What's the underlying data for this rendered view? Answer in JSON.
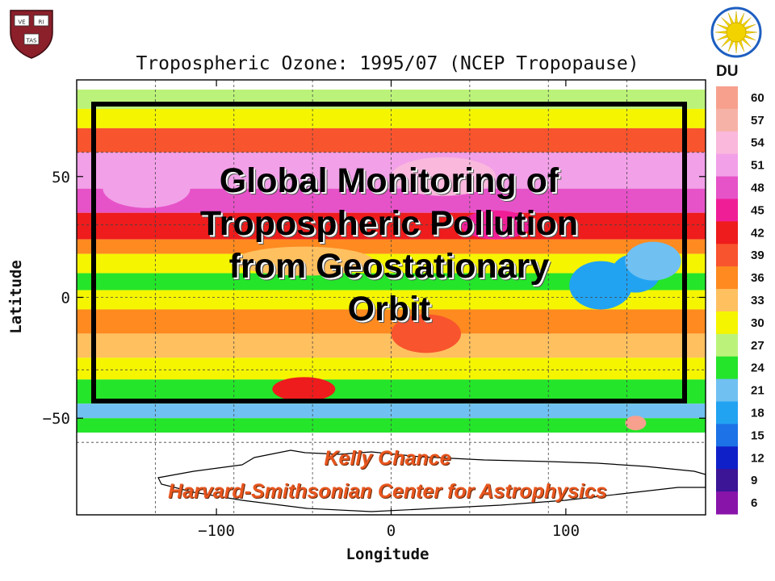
{
  "slide": {
    "title": "Global Monitoring of\nTropospheric Pollution\nfrom Geostationary\nOrbit",
    "author": "Kelly Chance",
    "affiliation": "Harvard-Smithsonian Center for Astrophysics"
  },
  "logos": {
    "left": {
      "name": "harvard-shield",
      "text": [
        "VE",
        "RI",
        "TAS"
      ],
      "color": "#8b1f2a"
    },
    "right": {
      "name": "smithsonian-sun",
      "color": "#f2d300",
      "ring_color": "#1e5fc0"
    }
  },
  "chart_data": {
    "type": "heatmap",
    "title": "Tropospheric Ozone: 1995/07 (NCEP Tropopause)",
    "xlabel": "Longitude",
    "ylabel": "Latitude",
    "x_ticks": [
      -100,
      0,
      100
    ],
    "x_tick_labels": [
      "−100",
      "0",
      "100"
    ],
    "y_ticks": [
      50,
      0,
      -50
    ],
    "y_tick_labels": [
      "50",
      "0",
      "−50"
    ],
    "xlim": [
      -180,
      180
    ],
    "ylim": [
      -90,
      90
    ],
    "data_lat_range": [
      -56,
      86
    ],
    "grid": "dashed, 45° longitude and 30° latitude",
    "colorbar": {
      "unit": "DU",
      "levels": [
        60,
        57,
        54,
        51,
        48,
        45,
        42,
        39,
        36,
        33,
        30,
        27,
        24,
        21,
        18,
        15,
        12,
        9,
        6
      ],
      "colors": [
        "#f7a08e",
        "#f7b2a8",
        "#f9b8dc",
        "#f2a0e8",
        "#e653c8",
        "#f01e96",
        "#ee1c1c",
        "#f8542e",
        "#fe8a20",
        "#ffc060",
        "#f5f500",
        "#bbf37a",
        "#24e52a",
        "#70c0f2",
        "#22a3f2",
        "#1c72e6",
        "#1020c8",
        "#3c1496",
        "#8814aa"
      ]
    },
    "zonal_bands": [
      {
        "lat_range": [
          78,
          86
        ],
        "value": 26
      },
      {
        "lat_range": [
          70,
          78
        ],
        "value": 31
      },
      {
        "lat_range": [
          60,
          70
        ],
        "value": 39
      },
      {
        "lat_range": [
          45,
          60
        ],
        "value": 50
      },
      {
        "lat_range": [
          35,
          45
        ],
        "value": 47
      },
      {
        "lat_range": [
          24,
          35
        ],
        "value": 42
      },
      {
        "lat_range": [
          18,
          24
        ],
        "value": 36
      },
      {
        "lat_range": [
          10,
          18
        ],
        "value": 29
      },
      {
        "lat_range": [
          3,
          10
        ],
        "value": 23
      },
      {
        "lat_range": [
          -5,
          3
        ],
        "value": 30
      },
      {
        "lat_range": [
          -15,
          -5
        ],
        "value": 35
      },
      {
        "lat_range": [
          -25,
          -15
        ],
        "value": 33
      },
      {
        "lat_range": [
          -34,
          -25
        ],
        "value": 30
      },
      {
        "lat_range": [
          -44,
          -34
        ],
        "value": 25
      },
      {
        "lat_range": [
          -50,
          -44
        ],
        "value": 20
      },
      {
        "lat_range": [
          -56,
          -50
        ],
        "value": 24
      }
    ],
    "anomalies": [
      {
        "lon": 120,
        "lat": 5,
        "rx": 18,
        "ry": 10,
        "value": 19
      },
      {
        "lon": 140,
        "lat": 10,
        "rx": 14,
        "ry": 8,
        "value": 17
      },
      {
        "lon": 150,
        "lat": 15,
        "rx": 16,
        "ry": 8,
        "value": 21
      },
      {
        "lon": -140,
        "lat": 45,
        "rx": 25,
        "ry": 8,
        "value": 51
      },
      {
        "lon": 30,
        "lat": 50,
        "rx": 30,
        "ry": 8,
        "value": 54
      },
      {
        "lon": -50,
        "lat": 15,
        "rx": 40,
        "ry": 6,
        "value": 33
      },
      {
        "lon": 20,
        "lat": -15,
        "rx": 20,
        "ry": 8,
        "value": 39
      },
      {
        "lon": -50,
        "lat": -38,
        "rx": 18,
        "ry": 5,
        "value": 42
      },
      {
        "lon": 60,
        "lat": 30,
        "rx": 20,
        "ry": 6,
        "value": 45
      },
      {
        "lon": 140,
        "lat": -52,
        "rx": 6,
        "ry": 3,
        "value": 60
      }
    ]
  }
}
